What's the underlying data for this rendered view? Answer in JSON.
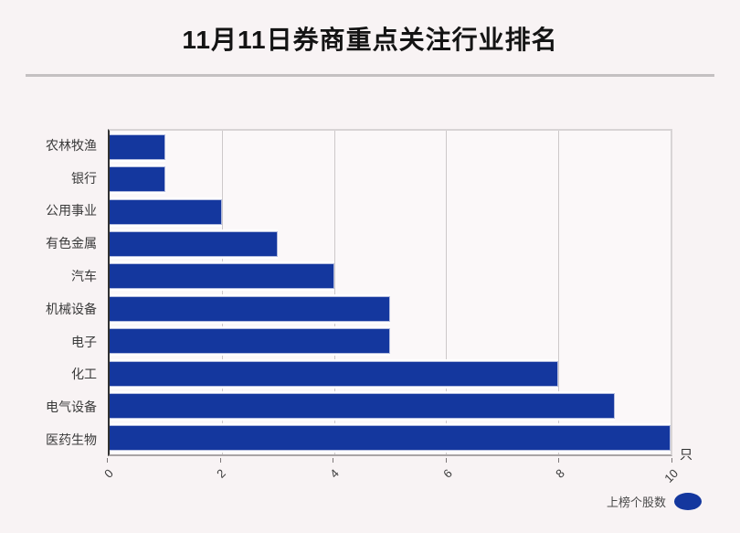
{
  "title": "11月11日券商重点关注行业排名",
  "unit_label": "只",
  "legend": {
    "label": "上榜个股数",
    "marker": "ellipse"
  },
  "colors": {
    "bar": "#14379e",
    "page_background": "#f8f3f4",
    "plot_background": "#fbf8f9"
  },
  "chart_data": {
    "type": "bar",
    "orientation": "horizontal",
    "title": "11月11日券商重点关注行业排名",
    "categories": [
      "农林牧渔",
      "银行",
      "公用事业",
      "有色金属",
      "汽车",
      "机械设备",
      "电子",
      "化工",
      "电气设备",
      "医药生物"
    ],
    "series": [
      {
        "name": "上榜个股数",
        "values": [
          1,
          1,
          2,
          3,
          4,
          5,
          5,
          8,
          9,
          10
        ]
      }
    ],
    "xlabel": "只",
    "ylabel": "",
    "xlim": [
      0,
      10
    ],
    "xticks": [
      0,
      2,
      4,
      6,
      8,
      10
    ],
    "xtick_rotation": 45,
    "grid": true,
    "legend_position": "bottom-right"
  }
}
